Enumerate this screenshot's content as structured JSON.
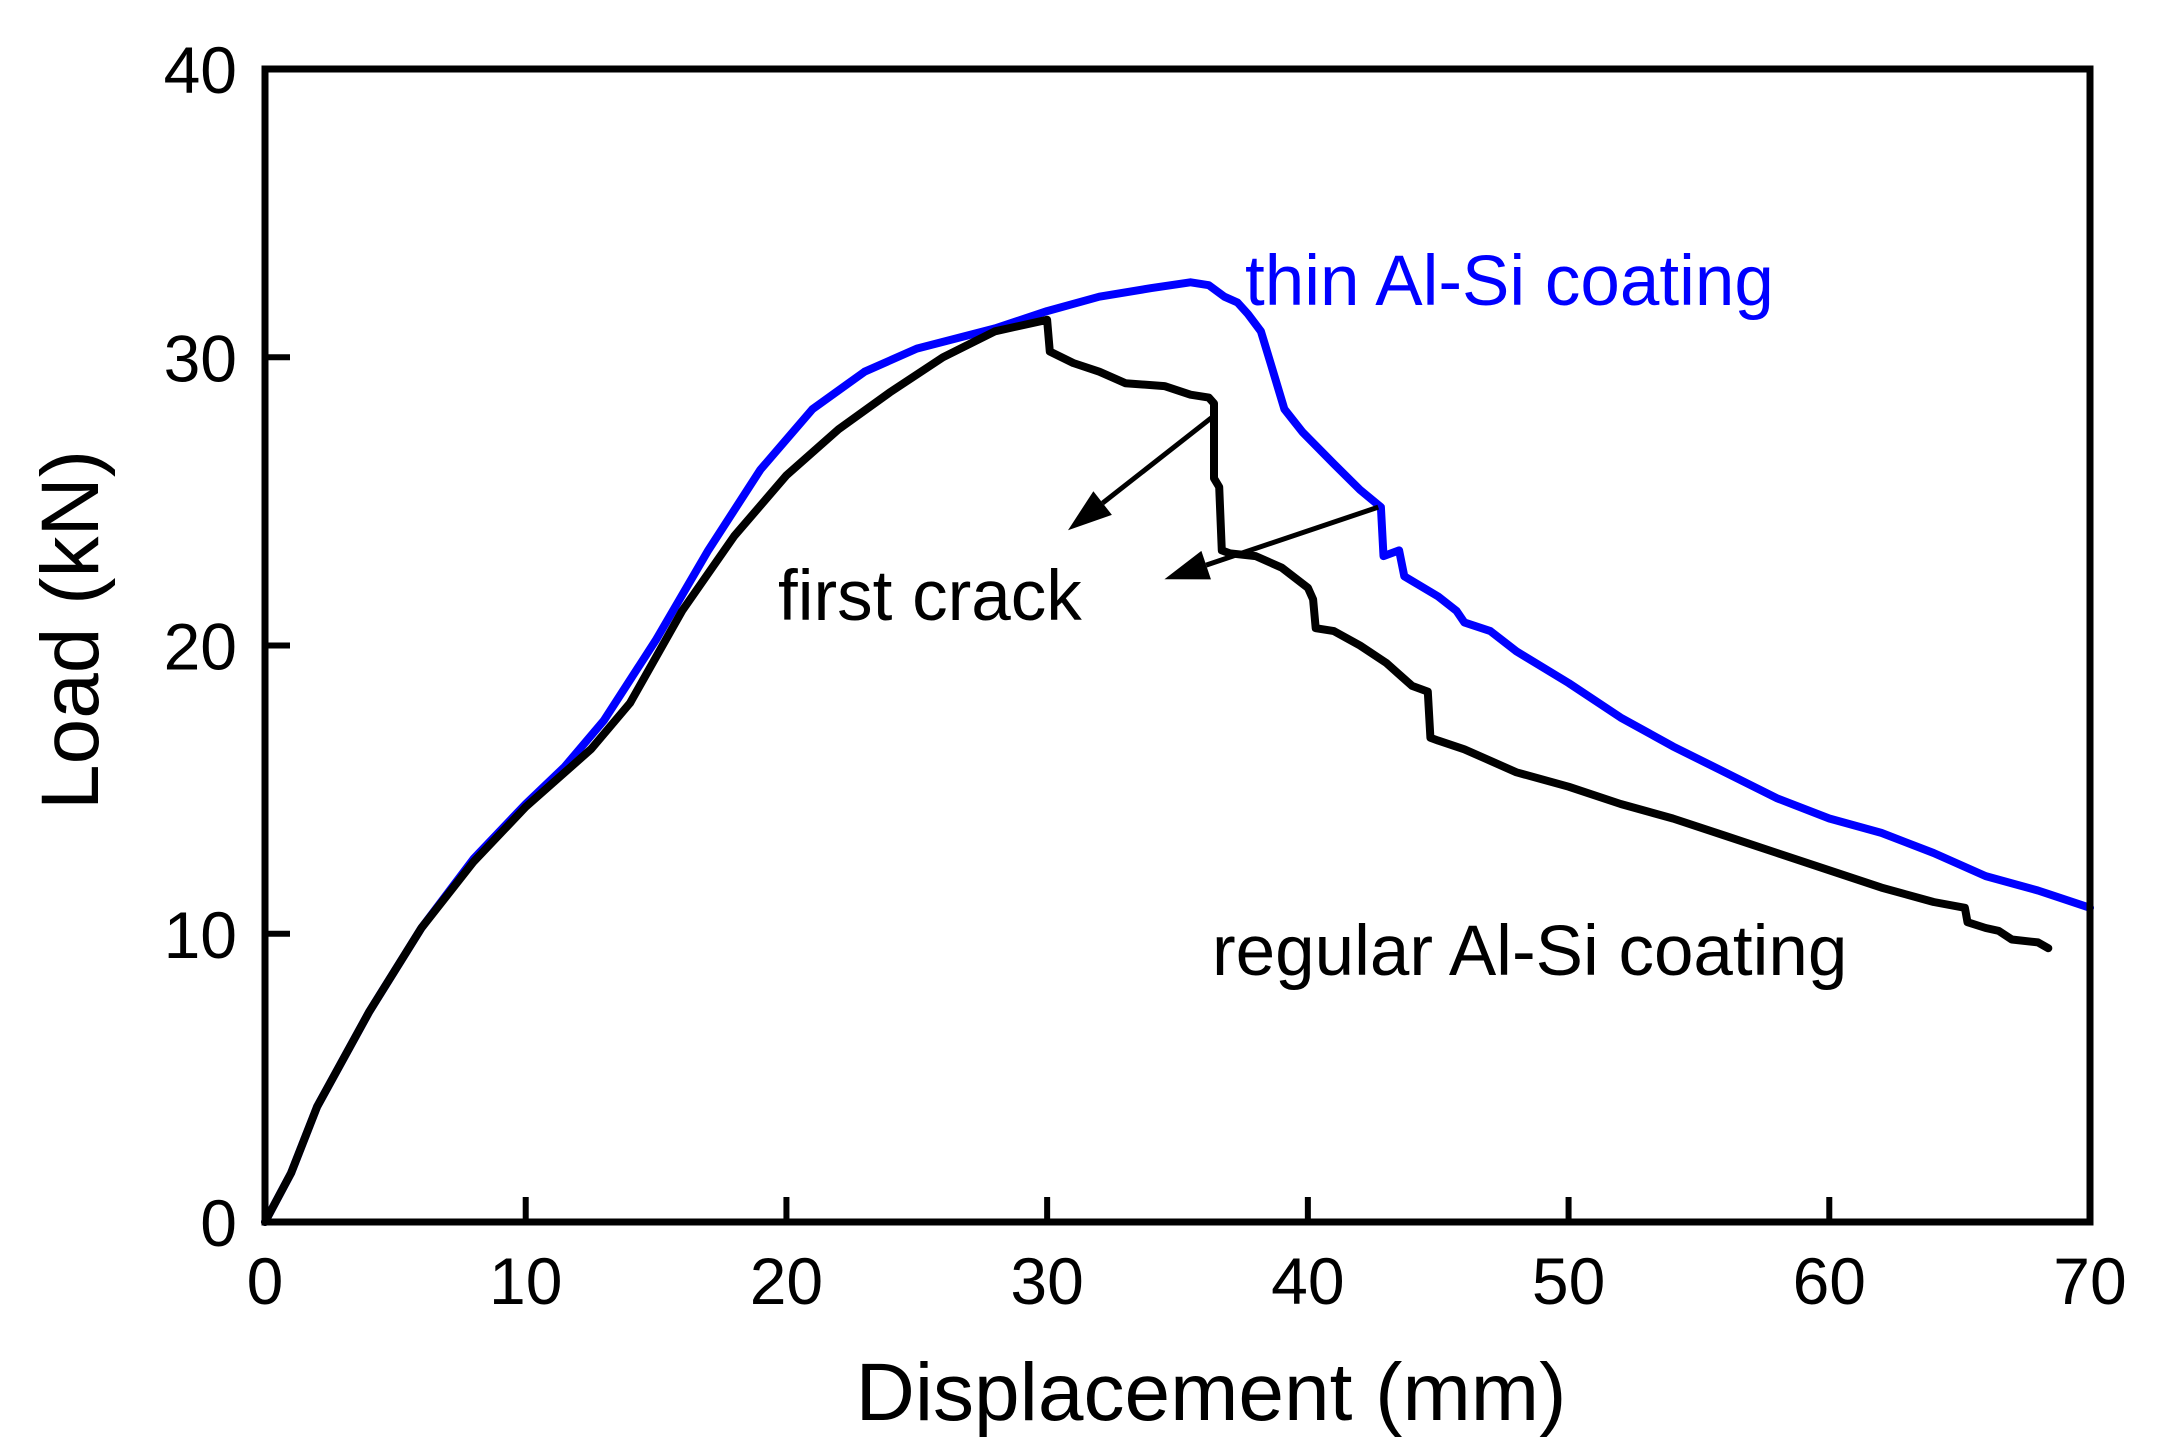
{
  "chart_data": {
    "type": "line",
    "title": "",
    "xlabel": "Displacement (mm)",
    "ylabel": "Load (kN)",
    "xlim": [
      0,
      70
    ],
    "ylim": [
      0,
      40
    ],
    "xticks": [
      0,
      10,
      20,
      30,
      40,
      50,
      60,
      70
    ],
    "yticks": [
      0,
      10,
      20,
      30,
      40
    ],
    "grid": false,
    "series": [
      {
        "name": "thin Al-Si coating",
        "color": "#0000ff",
        "points": [
          [
            0,
            0
          ],
          [
            1,
            1.7
          ],
          [
            2,
            4
          ],
          [
            4,
            7.3
          ],
          [
            6,
            10.2
          ],
          [
            8,
            12.6
          ],
          [
            10,
            14.5
          ],
          [
            11.5,
            15.8
          ],
          [
            13,
            17.4
          ],
          [
            15,
            20.2
          ],
          [
            17,
            23.3
          ],
          [
            19,
            26.1
          ],
          [
            21,
            28.2
          ],
          [
            23,
            29.5
          ],
          [
            25,
            30.3
          ],
          [
            28,
            31
          ],
          [
            30,
            31.6
          ],
          [
            32,
            32.1
          ],
          [
            34,
            32.4
          ],
          [
            35.5,
            32.6
          ],
          [
            36.2,
            32.5
          ],
          [
            36.8,
            32.1
          ],
          [
            37.3,
            31.9
          ],
          [
            37.7,
            31.5
          ],
          [
            38.2,
            30.9
          ],
          [
            38.6,
            29.7
          ],
          [
            39.1,
            28.2
          ],
          [
            39.8,
            27.4
          ],
          [
            41,
            26.3
          ],
          [
            42,
            25.4
          ],
          [
            42.8,
            24.8
          ],
          [
            42.9,
            23.1
          ],
          [
            43.5,
            23.3
          ],
          [
            43.7,
            22.4
          ],
          [
            45,
            21.7
          ],
          [
            45.7,
            21.2
          ],
          [
            46,
            20.8
          ],
          [
            47,
            20.5
          ],
          [
            48,
            19.8
          ],
          [
            50,
            18.7
          ],
          [
            52,
            17.5
          ],
          [
            54,
            16.5
          ],
          [
            56,
            15.6
          ],
          [
            58,
            14.7
          ],
          [
            60,
            14
          ],
          [
            62,
            13.5
          ],
          [
            64,
            12.8
          ],
          [
            66,
            12
          ],
          [
            68,
            11.5
          ],
          [
            70,
            10.9
          ]
        ]
      },
      {
        "name": "regular Al-Si coating",
        "color": "#000000",
        "points": [
          [
            0,
            0
          ],
          [
            1,
            1.7
          ],
          [
            2,
            4
          ],
          [
            4,
            7.3
          ],
          [
            6,
            10.2
          ],
          [
            8,
            12.5
          ],
          [
            10,
            14.4
          ],
          [
            12.5,
            16.4
          ],
          [
            14,
            18
          ],
          [
            16,
            21.2
          ],
          [
            18,
            23.8
          ],
          [
            20,
            25.9
          ],
          [
            22,
            27.5
          ],
          [
            24,
            28.8
          ],
          [
            26,
            30
          ],
          [
            28,
            30.9
          ],
          [
            30,
            31.3
          ],
          [
            30.1,
            30.2
          ],
          [
            31,
            29.8
          ],
          [
            32,
            29.5
          ],
          [
            33,
            29.1
          ],
          [
            34.5,
            29
          ],
          [
            35.5,
            28.7
          ],
          [
            36.2,
            28.6
          ],
          [
            36.4,
            28.4
          ],
          [
            36.4,
            25.8
          ],
          [
            36.6,
            25.5
          ],
          [
            36.7,
            23.3
          ],
          [
            37,
            23.2
          ],
          [
            38,
            23.1
          ],
          [
            39,
            22.7
          ],
          [
            40,
            22
          ],
          [
            40.2,
            21.6
          ],
          [
            40.3,
            20.6
          ],
          [
            41,
            20.5
          ],
          [
            42,
            20
          ],
          [
            43,
            19.4
          ],
          [
            44,
            18.6
          ],
          [
            44.6,
            18.4
          ],
          [
            44.7,
            16.8
          ],
          [
            45,
            16.7
          ],
          [
            46,
            16.4
          ],
          [
            47,
            16
          ],
          [
            48,
            15.6
          ],
          [
            50,
            15.1
          ],
          [
            52,
            14.5
          ],
          [
            54,
            14
          ],
          [
            56,
            13.4
          ],
          [
            58,
            12.8
          ],
          [
            60,
            12.2
          ],
          [
            62,
            11.6
          ],
          [
            64,
            11.1
          ],
          [
            65.2,
            10.9
          ],
          [
            65.3,
            10.4
          ],
          [
            66,
            10.2
          ],
          [
            66.5,
            10.1
          ],
          [
            67,
            9.8
          ],
          [
            68,
            9.7
          ],
          [
            68.4,
            9.5
          ]
        ]
      }
    ],
    "annotations": [
      {
        "name": "thin-coating-label",
        "text": "thin Al-Si coating",
        "color": "#0000ff"
      },
      {
        "name": "regular-coating-label",
        "text": "regular Al-Si coating",
        "color": "#000000"
      },
      {
        "name": "first-crack-label",
        "text": "first crack",
        "color": "#000000"
      }
    ],
    "arrows": [
      {
        "from": [
          36.3,
          27.9
        ],
        "to": [
          30.8,
          24
        ]
      },
      {
        "from": [
          42.7,
          24.8
        ],
        "to": [
          34.5,
          22.3
        ]
      }
    ]
  }
}
